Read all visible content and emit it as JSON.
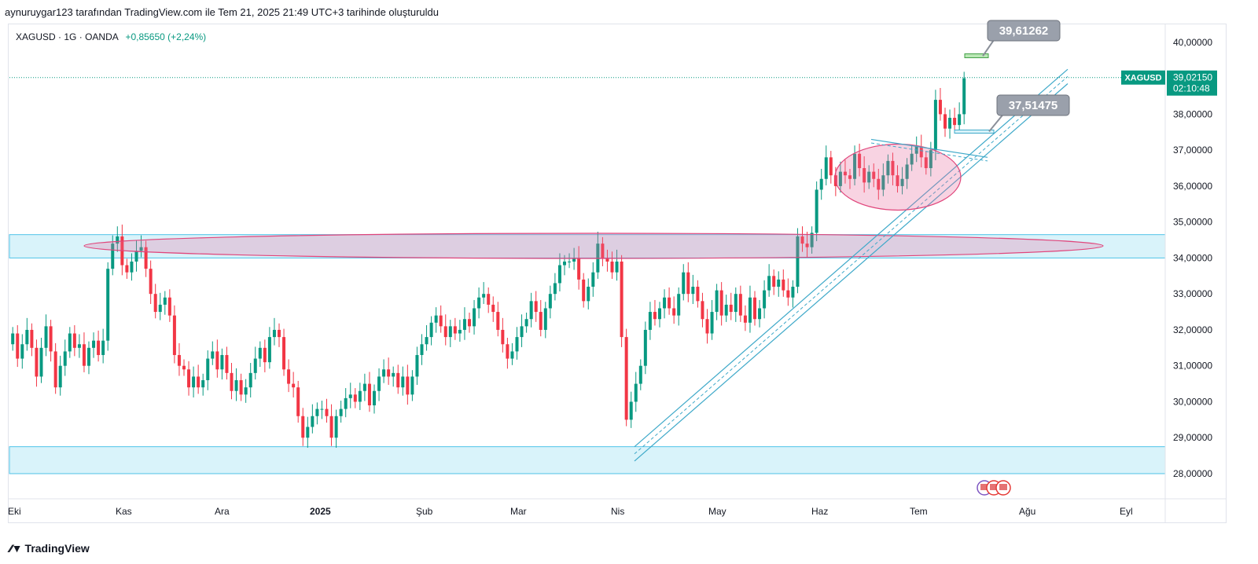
{
  "attribution": "aynuruygar123 tarafından TradingView.com ile Tem 21, 2025 21:49 UTC+3 tarihinde oluşturuldu",
  "footer": {
    "brand": "TradingView"
  },
  "chart_data": {
    "type": "candlestick",
    "symbol": "XAGUSD",
    "interval": "1G",
    "source": "OANDA",
    "change_text": "+0,85650 (+2,24%)",
    "last_price": "39,02150",
    "countdown": "02:10:48",
    "price_label_symbol": "XAGUSD",
    "y_axis": {
      "min": 27.3,
      "max": 40.5,
      "ticks": [
        "28,00000",
        "29,00000",
        "30,00000",
        "31,00000",
        "32,00000",
        "33,00000",
        "34,00000",
        "35,00000",
        "36,00000",
        "37,00000",
        "38,00000",
        "39,00000",
        "40,00000"
      ]
    },
    "x_axis": {
      "labels": [
        "Eki",
        "Kas",
        "Ara",
        "2025",
        "Şub",
        "Mar",
        "Nis",
        "May",
        "Haz",
        "Tem",
        "Ağu",
        "Eyl"
      ]
    },
    "callouts": [
      "39,61262",
      "37,51475"
    ],
    "zones": [
      {
        "from": 34.0,
        "to": 34.65
      },
      {
        "from": 28.0,
        "to": 28.75
      }
    ],
    "series": [
      {
        "points": [
          [
            31.6,
            31.9
          ],
          [
            31.9,
            31.2
          ],
          [
            31.2,
            31.6
          ],
          [
            31.6,
            32.0
          ],
          [
            32.0,
            31.5
          ],
          [
            31.5,
            30.7
          ],
          [
            30.7,
            31.5
          ],
          [
            31.5,
            32.1
          ],
          [
            32.1,
            31.4
          ],
          [
            31.4,
            30.4
          ],
          [
            30.4,
            31.0
          ],
          [
            31.0,
            31.4
          ],
          [
            31.4,
            31.9
          ],
          [
            31.9,
            31.5
          ],
          [
            31.5,
            31.6
          ],
          [
            31.6,
            31.0
          ],
          [
            31.0,
            31.5
          ],
          [
            31.5,
            31.7
          ],
          [
            31.7,
            31.3
          ],
          [
            31.3,
            31.7
          ],
          [
            31.7,
            33.7
          ],
          [
            33.7,
            34.4
          ],
          [
            34.4,
            34.6
          ],
          [
            34.6,
            33.8
          ],
          [
            33.8,
            33.6
          ],
          [
            33.6,
            33.9
          ],
          [
            33.9,
            34.2
          ],
          [
            34.2,
            34.3
          ],
          [
            34.3,
            33.7
          ],
          [
            33.7,
            33.0
          ],
          [
            33.0,
            32.5
          ],
          [
            32.5,
            32.7
          ],
          [
            32.7,
            32.9
          ],
          [
            32.9,
            32.4
          ],
          [
            32.4,
            31.3
          ],
          [
            31.3,
            31.0
          ],
          [
            31.0,
            30.9
          ],
          [
            30.9,
            30.4
          ],
          [
            30.4,
            30.7
          ],
          [
            30.7,
            30.4
          ],
          [
            30.4,
            30.6
          ],
          [
            30.6,
            31.2
          ],
          [
            31.2,
            31.4
          ],
          [
            31.4,
            30.9
          ],
          [
            30.9,
            31.3
          ],
          [
            31.3,
            30.8
          ],
          [
            30.8,
            30.3
          ],
          [
            30.3,
            30.6
          ],
          [
            30.6,
            30.2
          ],
          [
            30.2,
            30.4
          ],
          [
            30.4,
            30.8
          ],
          [
            30.8,
            31.2
          ],
          [
            31.2,
            31.5
          ],
          [
            31.5,
            31.1
          ],
          [
            31.1,
            31.8
          ],
          [
            31.8,
            32.0
          ],
          [
            32.0,
            31.8
          ],
          [
            31.8,
            30.9
          ],
          [
            30.9,
            30.5
          ],
          [
            30.5,
            30.4
          ],
          [
            30.4,
            29.6
          ],
          [
            29.6,
            29.0
          ],
          [
            29.0,
            29.3
          ],
          [
            29.3,
            29.6
          ],
          [
            29.6,
            29.8
          ],
          [
            29.8,
            29.8
          ],
          [
            29.8,
            29.6
          ],
          [
            29.6,
            29.0
          ],
          [
            29.0,
            29.6
          ],
          [
            29.6,
            29.8
          ],
          [
            29.8,
            30.1
          ],
          [
            30.1,
            30.2
          ],
          [
            30.2,
            30.0
          ],
          [
            30.0,
            30.3
          ],
          [
            30.3,
            30.5
          ],
          [
            30.5,
            29.9
          ],
          [
            29.9,
            30.3
          ],
          [
            30.3,
            30.7
          ],
          [
            30.7,
            30.9
          ],
          [
            30.9,
            30.7
          ],
          [
            30.7,
            30.8
          ],
          [
            30.8,
            30.4
          ],
          [
            30.4,
            30.7
          ],
          [
            30.7,
            30.2
          ],
          [
            30.2,
            30.7
          ],
          [
            30.7,
            31.3
          ],
          [
            31.3,
            31.6
          ],
          [
            31.6,
            31.8
          ],
          [
            31.8,
            32.2
          ],
          [
            32.2,
            32.4
          ],
          [
            32.4,
            32.1
          ],
          [
            32.1,
            31.8
          ],
          [
            31.8,
            32.1
          ],
          [
            32.1,
            31.9
          ],
          [
            31.9,
            32.0
          ],
          [
            32.0,
            32.3
          ],
          [
            32.3,
            32.1
          ],
          [
            32.1,
            32.6
          ],
          [
            32.6,
            32.9
          ],
          [
            32.9,
            33.0
          ],
          [
            33.0,
            32.7
          ],
          [
            32.7,
            32.5
          ],
          [
            32.5,
            32.0
          ],
          [
            32.0,
            31.6
          ],
          [
            31.6,
            31.2
          ],
          [
            31.2,
            31.4
          ],
          [
            31.4,
            31.8
          ],
          [
            31.8,
            32.1
          ],
          [
            32.1,
            32.3
          ],
          [
            32.3,
            32.8
          ],
          [
            32.8,
            32.5
          ],
          [
            32.5,
            32.0
          ],
          [
            32.0,
            32.6
          ],
          [
            32.6,
            33.0
          ],
          [
            33.0,
            33.3
          ],
          [
            33.3,
            33.8
          ],
          [
            33.8,
            33.9
          ],
          [
            33.9,
            33.9
          ],
          [
            33.9,
            34.0
          ],
          [
            34.0,
            33.4
          ],
          [
            33.4,
            32.8
          ],
          [
            32.8,
            33.2
          ],
          [
            33.2,
            33.6
          ],
          [
            33.6,
            34.4
          ],
          [
            34.4,
            34.0
          ],
          [
            34.0,
            33.9
          ],
          [
            33.9,
            33.6
          ],
          [
            33.6,
            33.9
          ],
          [
            33.9,
            31.8
          ],
          [
            31.8,
            29.5
          ],
          [
            29.5,
            30.0
          ],
          [
            30.0,
            30.5
          ],
          [
            30.5,
            31.0
          ],
          [
            31.0,
            32.0
          ],
          [
            32.0,
            32.5
          ],
          [
            32.5,
            32.3
          ],
          [
            32.3,
            32.6
          ],
          [
            32.6,
            32.9
          ],
          [
            32.9,
            32.6
          ],
          [
            32.6,
            32.4
          ],
          [
            32.4,
            33.0
          ],
          [
            33.0,
            33.6
          ],
          [
            33.6,
            33.0
          ],
          [
            33.0,
            33.2
          ],
          [
            33.2,
            32.8
          ],
          [
            32.8,
            32.3
          ],
          [
            32.3,
            31.9
          ],
          [
            31.9,
            32.5
          ],
          [
            32.5,
            33.1
          ],
          [
            33.1,
            32.4
          ],
          [
            32.4,
            32.7
          ],
          [
            32.7,
            32.5
          ],
          [
            32.5,
            33.0
          ],
          [
            33.0,
            32.4
          ],
          [
            32.4,
            32.2
          ],
          [
            32.2,
            32.9
          ],
          [
            32.9,
            32.3
          ],
          [
            32.3,
            32.6
          ],
          [
            32.6,
            33.1
          ],
          [
            33.1,
            33.5
          ],
          [
            33.5,
            33.2
          ],
          [
            33.2,
            33.4
          ],
          [
            33.4,
            33.1
          ],
          [
            33.1,
            32.9
          ],
          [
            32.9,
            33.2
          ],
          [
            33.2,
            34.6
          ],
          [
            34.6,
            34.4
          ],
          [
            34.4,
            34.3
          ],
          [
            34.3,
            34.7
          ],
          [
            34.7,
            35.9
          ],
          [
            35.9,
            36.2
          ],
          [
            36.2,
            36.8
          ],
          [
            36.8,
            36.3
          ],
          [
            36.3,
            36.0
          ],
          [
            36.0,
            36.4
          ],
          [
            36.4,
            36.3
          ],
          [
            36.3,
            36.2
          ],
          [
            36.2,
            36.9
          ],
          [
            36.9,
            36.5
          ],
          [
            36.5,
            36.1
          ],
          [
            36.1,
            36.4
          ],
          [
            36.4,
            36.2
          ],
          [
            36.2,
            35.9
          ],
          [
            35.9,
            36.3
          ],
          [
            36.3,
            36.7
          ],
          [
            36.7,
            36.3
          ],
          [
            36.3,
            36.0
          ],
          [
            36.0,
            36.2
          ],
          [
            36.2,
            36.6
          ],
          [
            36.6,
            36.9
          ],
          [
            36.9,
            37.1
          ],
          [
            37.1,
            36.8
          ],
          [
            36.8,
            36.5
          ],
          [
            36.5,
            37.0
          ],
          [
            37.0,
            38.4
          ],
          [
            38.4,
            38.0
          ],
          [
            38.0,
            37.6
          ],
          [
            37.6,
            37.9
          ],
          [
            37.9,
            37.7
          ],
          [
            37.7,
            38.0
          ],
          [
            38.0,
            39.0
          ]
        ]
      }
    ]
  }
}
